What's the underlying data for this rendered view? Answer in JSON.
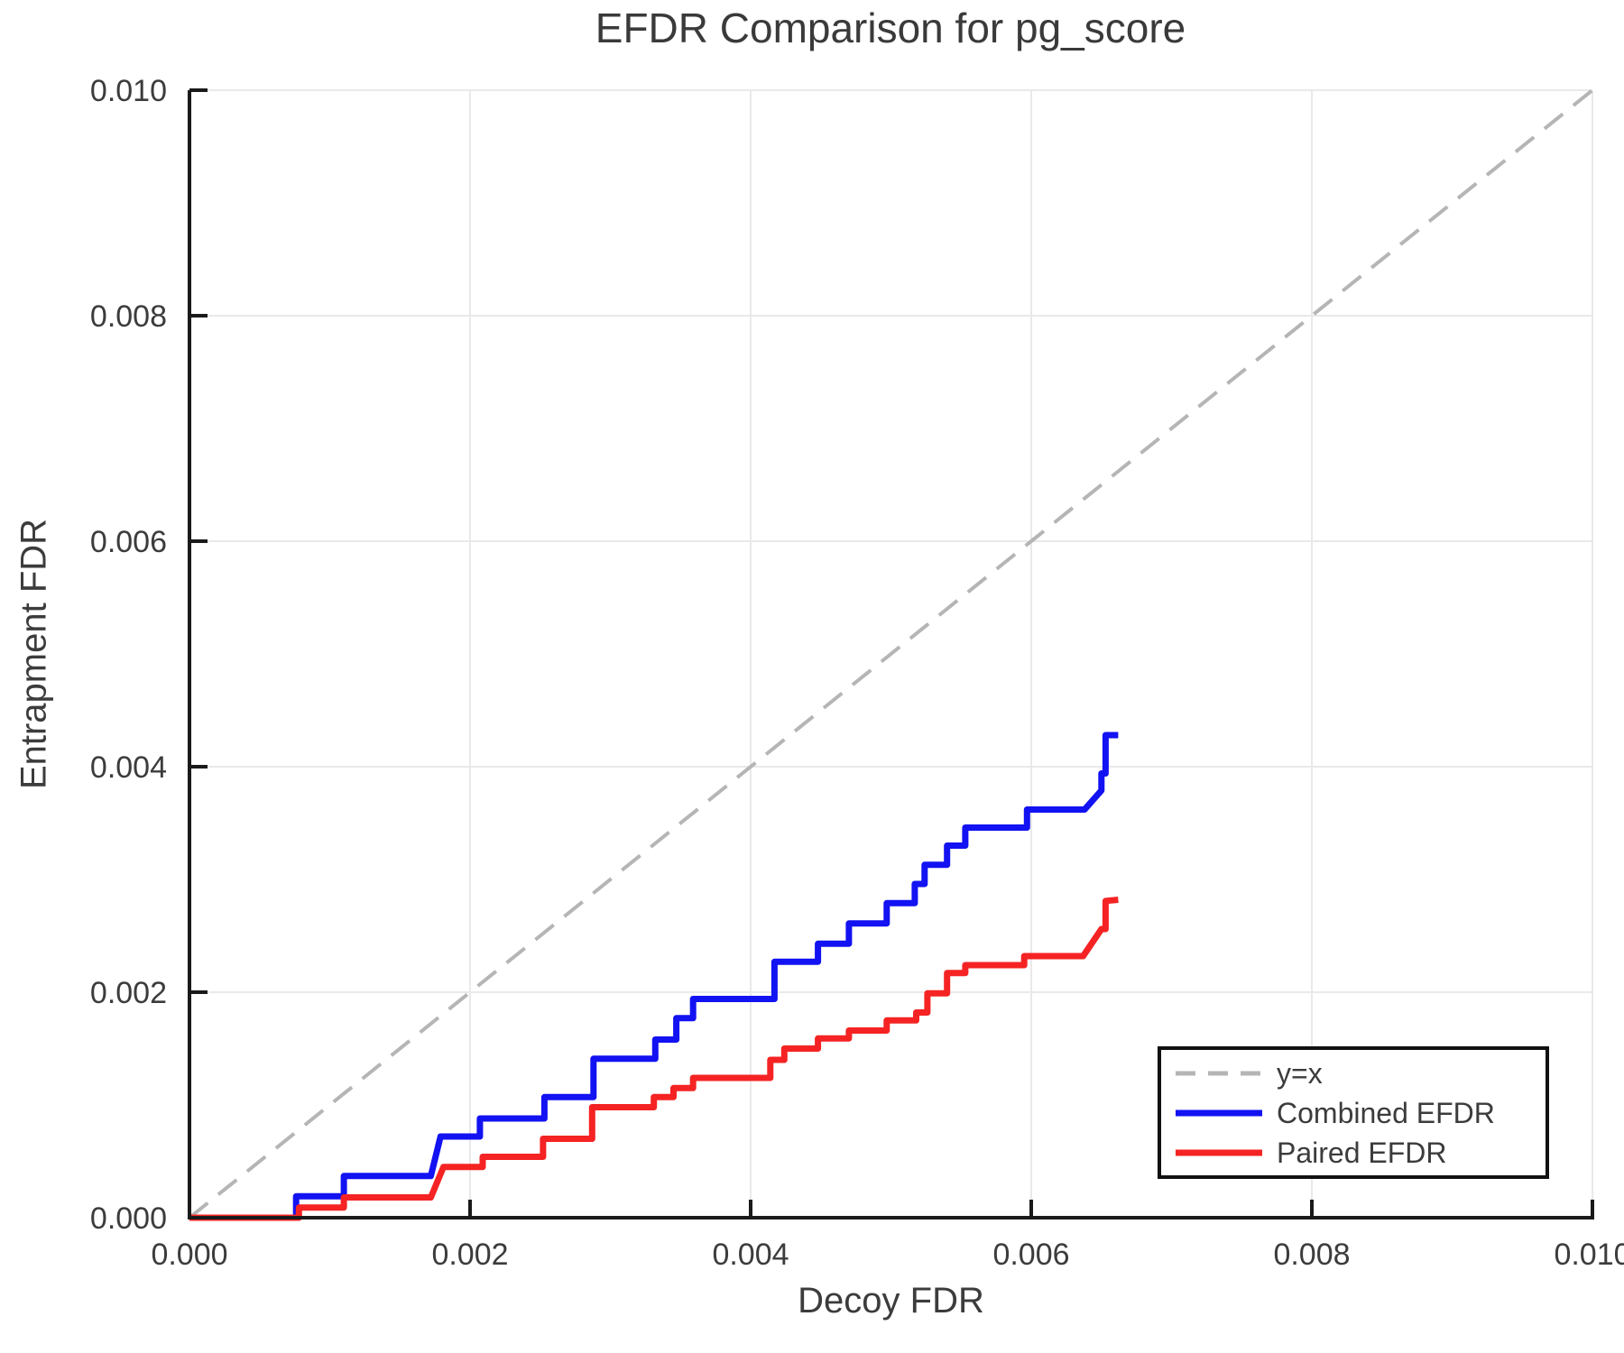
{
  "chart_data": {
    "type": "line",
    "title": "EFDR Comparison for pg_score",
    "xlabel": "Decoy FDR",
    "ylabel": "Entrapment FDR",
    "xlim": [
      0,
      0.01
    ],
    "ylim": [
      0,
      0.01
    ],
    "x_ticks": [
      0,
      0.002,
      0.004,
      0.006,
      0.008,
      0.01
    ],
    "y_ticks": [
      0,
      0.002,
      0.004,
      0.006,
      0.008,
      0.01
    ],
    "x_tick_labels": [
      "0.000",
      "0.002",
      "0.004",
      "0.006",
      "0.008",
      "0.010"
    ],
    "y_tick_labels": [
      "0.000",
      "0.002",
      "0.004",
      "0.006",
      "0.008",
      "0.010"
    ],
    "grid": true,
    "grid_color": "#e9e9e9",
    "axis_color": "#1a1a1a",
    "text_color": "#3c3c3c",
    "legend_position": "lower right",
    "series": [
      {
        "name": "y=x",
        "style": "dashed",
        "color": "#b5b5b5",
        "width": 4,
        "points": [
          [
            0,
            0
          ],
          [
            0.01,
            0.01
          ]
        ]
      },
      {
        "name": "Combined EFDR",
        "style": "solid",
        "color": "#1212f2",
        "width": 7,
        "points": [
          [
            0,
            0
          ],
          [
            0.00076,
            0
          ],
          [
            0.00076,
            0.00019
          ],
          [
            0.0011,
            0.00019
          ],
          [
            0.0011,
            0.00037
          ],
          [
            0.00172,
            0.00037
          ],
          [
            0.00179,
            0.00072
          ],
          [
            0.00207,
            0.00072
          ],
          [
            0.00207,
            0.00088
          ],
          [
            0.00253,
            0.00088
          ],
          [
            0.00253,
            0.00107
          ],
          [
            0.00288,
            0.00107
          ],
          [
            0.00288,
            0.00141
          ],
          [
            0.00332,
            0.00141
          ],
          [
            0.00332,
            0.00158
          ],
          [
            0.00347,
            0.00158
          ],
          [
            0.00347,
            0.00177
          ],
          [
            0.00359,
            0.00177
          ],
          [
            0.00359,
            0.00194
          ],
          [
            0.00417,
            0.00194
          ],
          [
            0.00417,
            0.00227
          ],
          [
            0.00448,
            0.00227
          ],
          [
            0.00448,
            0.00243
          ],
          [
            0.0047,
            0.00243
          ],
          [
            0.0047,
            0.00261
          ],
          [
            0.00497,
            0.00261
          ],
          [
            0.00497,
            0.00279
          ],
          [
            0.00517,
            0.00279
          ],
          [
            0.00517,
            0.00296
          ],
          [
            0.00524,
            0.00296
          ],
          [
            0.00524,
            0.00313
          ],
          [
            0.0054,
            0.00313
          ],
          [
            0.0054,
            0.0033
          ],
          [
            0.00553,
            0.0033
          ],
          [
            0.00553,
            0.00346
          ],
          [
            0.00597,
            0.00346
          ],
          [
            0.00597,
            0.00362
          ],
          [
            0.00638,
            0.00362
          ],
          [
            0.0065,
            0.00379
          ],
          [
            0.0065,
            0.00394
          ],
          [
            0.00653,
            0.00394
          ],
          [
            0.00653,
            0.00428
          ],
          [
            0.00662,
            0.00428
          ]
        ]
      },
      {
        "name": "Paired EFDR",
        "style": "solid",
        "color": "#f52323",
        "width": 7,
        "points": [
          [
            0,
            0
          ],
          [
            0.00078,
            0
          ],
          [
            0.00078,
            9e-05
          ],
          [
            0.0011,
            9e-05
          ],
          [
            0.0011,
            0.00018
          ],
          [
            0.00172,
            0.00018
          ],
          [
            0.00181,
            0.00045
          ],
          [
            0.00209,
            0.00045
          ],
          [
            0.00209,
            0.00054
          ],
          [
            0.00252,
            0.00054
          ],
          [
            0.00252,
            0.0007
          ],
          [
            0.00287,
            0.0007
          ],
          [
            0.00287,
            0.00098
          ],
          [
            0.00331,
            0.00098
          ],
          [
            0.00331,
            0.00107
          ],
          [
            0.00345,
            0.00107
          ],
          [
            0.00345,
            0.00115
          ],
          [
            0.00359,
            0.00115
          ],
          [
            0.00359,
            0.00124
          ],
          [
            0.00414,
            0.00124
          ],
          [
            0.00414,
            0.0014
          ],
          [
            0.00424,
            0.0014
          ],
          [
            0.00424,
            0.0015
          ],
          [
            0.00448,
            0.0015
          ],
          [
            0.00448,
            0.00159
          ],
          [
            0.0047,
            0.00159
          ],
          [
            0.0047,
            0.00166
          ],
          [
            0.00497,
            0.00166
          ],
          [
            0.00497,
            0.00175
          ],
          [
            0.00518,
            0.00175
          ],
          [
            0.00518,
            0.00182
          ],
          [
            0.00526,
            0.00182
          ],
          [
            0.00526,
            0.00199
          ],
          [
            0.0054,
            0.00199
          ],
          [
            0.0054,
            0.00217
          ],
          [
            0.00553,
            0.00217
          ],
          [
            0.00553,
            0.00224
          ],
          [
            0.00595,
            0.00224
          ],
          [
            0.00595,
            0.00232
          ],
          [
            0.00637,
            0.00232
          ],
          [
            0.0065,
            0.00256
          ],
          [
            0.00653,
            0.00256
          ],
          [
            0.00653,
            0.00281
          ],
          [
            0.00662,
            0.00282
          ]
        ]
      }
    ]
  }
}
